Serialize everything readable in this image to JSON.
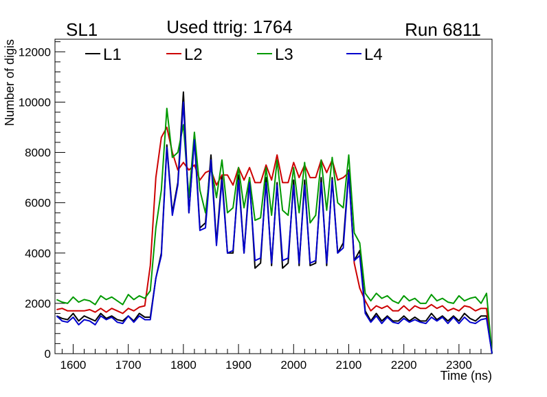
{
  "header": {
    "left": "SL1",
    "center": "Used ttrig: 1764",
    "right": "Run 6811"
  },
  "chart_data": {
    "type": "line",
    "title": "Used ttrig: 1764",
    "xlabel": "Time (ns)",
    "ylabel": "Number of digis",
    "xlim": [
      1567,
      2360
    ],
    "ylim": [
      0,
      12500
    ],
    "x_ticks": [
      1600,
      1700,
      1800,
      1900,
      2000,
      2100,
      2200,
      2300
    ],
    "y_ticks": [
      0,
      2000,
      4000,
      6000,
      8000,
      10000,
      12000
    ],
    "grid": false,
    "legend_position": "top",
    "x": [
      1570,
      1580,
      1590,
      1600,
      1610,
      1620,
      1630,
      1640,
      1650,
      1660,
      1670,
      1680,
      1690,
      1700,
      1710,
      1720,
      1730,
      1740,
      1750,
      1760,
      1770,
      1780,
      1790,
      1800,
      1810,
      1820,
      1830,
      1840,
      1850,
      1860,
      1870,
      1880,
      1890,
      1900,
      1910,
      1920,
      1930,
      1940,
      1950,
      1960,
      1970,
      1980,
      1990,
      2000,
      2010,
      2020,
      2030,
      2040,
      2050,
      2060,
      2070,
      2080,
      2090,
      2100,
      2110,
      2120,
      2130,
      2140,
      2150,
      2160,
      2170,
      2180,
      2190,
      2200,
      2210,
      2220,
      2230,
      2240,
      2250,
      2260,
      2270,
      2280,
      2290,
      2300,
      2310,
      2320,
      2330,
      2340,
      2350,
      2360
    ],
    "series": [
      {
        "name": "L1",
        "color": "#000000",
        "values": [
          1500,
          1400,
          1350,
          1600,
          1300,
          1500,
          1400,
          1300,
          1600,
          1400,
          1500,
          1350,
          1300,
          1500,
          1300,
          1600,
          1450,
          1450,
          3000,
          4000,
          8300,
          5600,
          6800,
          10400,
          5600,
          8600,
          5000,
          5200,
          7900,
          4400,
          7100,
          4000,
          4000,
          7100,
          4000,
          7000,
          3400,
          3600,
          7000,
          3500,
          6800,
          3400,
          3600,
          6900,
          3500,
          6900,
          3500,
          3600,
          7000,
          3500,
          7000,
          4000,
          4400,
          7300,
          3700,
          4100,
          1700,
          1300,
          1600,
          1300,
          1500,
          1300,
          1300,
          1500,
          1300,
          1450,
          1300,
          1300,
          1600,
          1350,
          1500,
          1300,
          1500,
          1300,
          1600,
          1400,
          1300,
          1500,
          1500,
          0
        ]
      },
      {
        "name": "L2",
        "color": "#cc0000",
        "values": [
          1750,
          1800,
          1700,
          1700,
          1700,
          1700,
          1750,
          1650,
          1800,
          1650,
          1800,
          1700,
          1600,
          1800,
          1700,
          1850,
          1900,
          3500,
          7000,
          8600,
          9000,
          8000,
          7300,
          7600,
          7300,
          7500,
          6900,
          7200,
          7300,
          6700,
          7100,
          7100,
          6700,
          7400,
          6900,
          7400,
          6800,
          6800,
          7500,
          6900,
          7900,
          6800,
          6800,
          7600,
          7000,
          7500,
          7000,
          7000,
          7700,
          7200,
          7700,
          6900,
          7000,
          7200,
          3600,
          2600,
          2100,
          1700,
          1900,
          1800,
          1900,
          1700,
          1700,
          1900,
          1700,
          1900,
          1800,
          1800,
          1950,
          1800,
          1900,
          1700,
          1800,
          1700,
          1900,
          1850,
          1700,
          1800,
          1800,
          0
        ]
      },
      {
        "name": "L3",
        "color": "#009900",
        "values": [
          2150,
          2050,
          2000,
          2250,
          2050,
          2150,
          2100,
          1950,
          2300,
          2150,
          2250,
          2100,
          1950,
          2350,
          2150,
          2300,
          2200,
          2500,
          5000,
          6500,
          9750,
          7800,
          8000,
          9100,
          6200,
          8800,
          6500,
          5600,
          7500,
          6200,
          7700,
          5600,
          5800,
          7400,
          5800,
          7000,
          5300,
          5400,
          7400,
          5500,
          7700,
          5700,
          5500,
          7400,
          5600,
          7600,
          5200,
          5500,
          7700,
          5700,
          7800,
          6000,
          5800,
          7900,
          4800,
          4400,
          2400,
          2100,
          2400,
          2200,
          2300,
          2100,
          2000,
          2300,
          2100,
          2200,
          2000,
          2000,
          2350,
          2100,
          2200,
          2050,
          2000,
          2300,
          2100,
          2200,
          2250,
          2000,
          2400,
          0
        ]
      },
      {
        "name": "L4",
        "color": "#0000cc",
        "values": [
          1500,
          1300,
          1250,
          1450,
          1150,
          1350,
          1300,
          1150,
          1500,
          1350,
          1450,
          1250,
          1200,
          1500,
          1250,
          1500,
          1350,
          1350,
          3000,
          3900,
          8200,
          5500,
          6700,
          10000,
          5600,
          8500,
          4900,
          5000,
          7700,
          4300,
          6900,
          4000,
          4100,
          6900,
          4000,
          6800,
          3700,
          3800,
          6800,
          3600,
          6700,
          3700,
          3800,
          6700,
          3600,
          6700,
          3600,
          3700,
          6800,
          3600,
          6900,
          4000,
          4200,
          7200,
          3700,
          3900,
          1600,
          1250,
          1500,
          1200,
          1450,
          1250,
          1200,
          1400,
          1250,
          1350,
          1250,
          1200,
          1450,
          1300,
          1450,
          1200,
          1450,
          1200,
          1450,
          1250,
          1200,
          1350,
          1400,
          0
        ]
      }
    ]
  }
}
